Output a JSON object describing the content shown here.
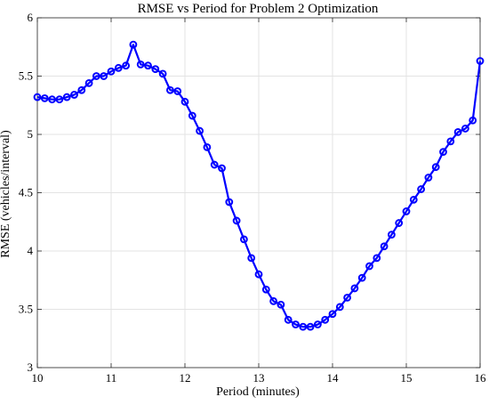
{
  "chart_data": {
    "type": "line",
    "title": "RMSE vs Period for Problem 2 Optimization",
    "xlabel": "Period (minutes)",
    "ylabel": "RMSE (vehicles/interval)",
    "xlim": [
      10,
      16
    ],
    "ylim": [
      3,
      6
    ],
    "xticks": [
      10,
      11,
      12,
      13,
      14,
      15,
      16
    ],
    "xtick_labels": [
      "10",
      "11",
      "12",
      "13",
      "14",
      "15",
      "16"
    ],
    "yticks": [
      3,
      3.5,
      4,
      4.5,
      5,
      5.5,
      6
    ],
    "ytick_labels": [
      "3",
      "3.5",
      "4",
      "4.5",
      "5",
      "5.5",
      "6"
    ],
    "grid": true,
    "series": [
      {
        "color": "#0000ff",
        "marker": "circle",
        "x": [
          10.0,
          10.1,
          10.2,
          10.3,
          10.4,
          10.5,
          10.6,
          10.7,
          10.8,
          10.9,
          11.0,
          11.1,
          11.2,
          11.3,
          11.4,
          11.5,
          11.6,
          11.7,
          11.8,
          11.9,
          12.0,
          12.1,
          12.2,
          12.3,
          12.4,
          12.5,
          12.6,
          12.7,
          12.8,
          12.9,
          13.0,
          13.1,
          13.2,
          13.3,
          13.4,
          13.5,
          13.6,
          13.7,
          13.8,
          13.9,
          14.0,
          14.1,
          14.2,
          14.3,
          14.4,
          14.5,
          14.6,
          14.7,
          14.8,
          14.9,
          15.0,
          15.1,
          15.2,
          15.3,
          15.4,
          15.5,
          15.6,
          15.7,
          15.8,
          15.9,
          16.0
        ],
        "y": [
          5.32,
          5.31,
          5.3,
          5.3,
          5.32,
          5.34,
          5.38,
          5.44,
          5.5,
          5.5,
          5.54,
          5.57,
          5.59,
          5.77,
          5.6,
          5.59,
          5.56,
          5.52,
          5.38,
          5.37,
          5.28,
          5.16,
          5.03,
          4.89,
          4.74,
          4.71,
          4.42,
          4.26,
          4.1,
          3.94,
          3.8,
          3.67,
          3.57,
          3.54,
          3.41,
          3.37,
          3.35,
          3.35,
          3.37,
          3.41,
          3.46,
          3.52,
          3.6,
          3.68,
          3.77,
          3.87,
          3.94,
          4.04,
          4.14,
          4.24,
          4.34,
          4.44,
          4.53,
          4.63,
          4.72,
          4.85,
          4.94,
          5.02,
          5.05,
          5.12,
          5.63
        ]
      }
    ]
  }
}
